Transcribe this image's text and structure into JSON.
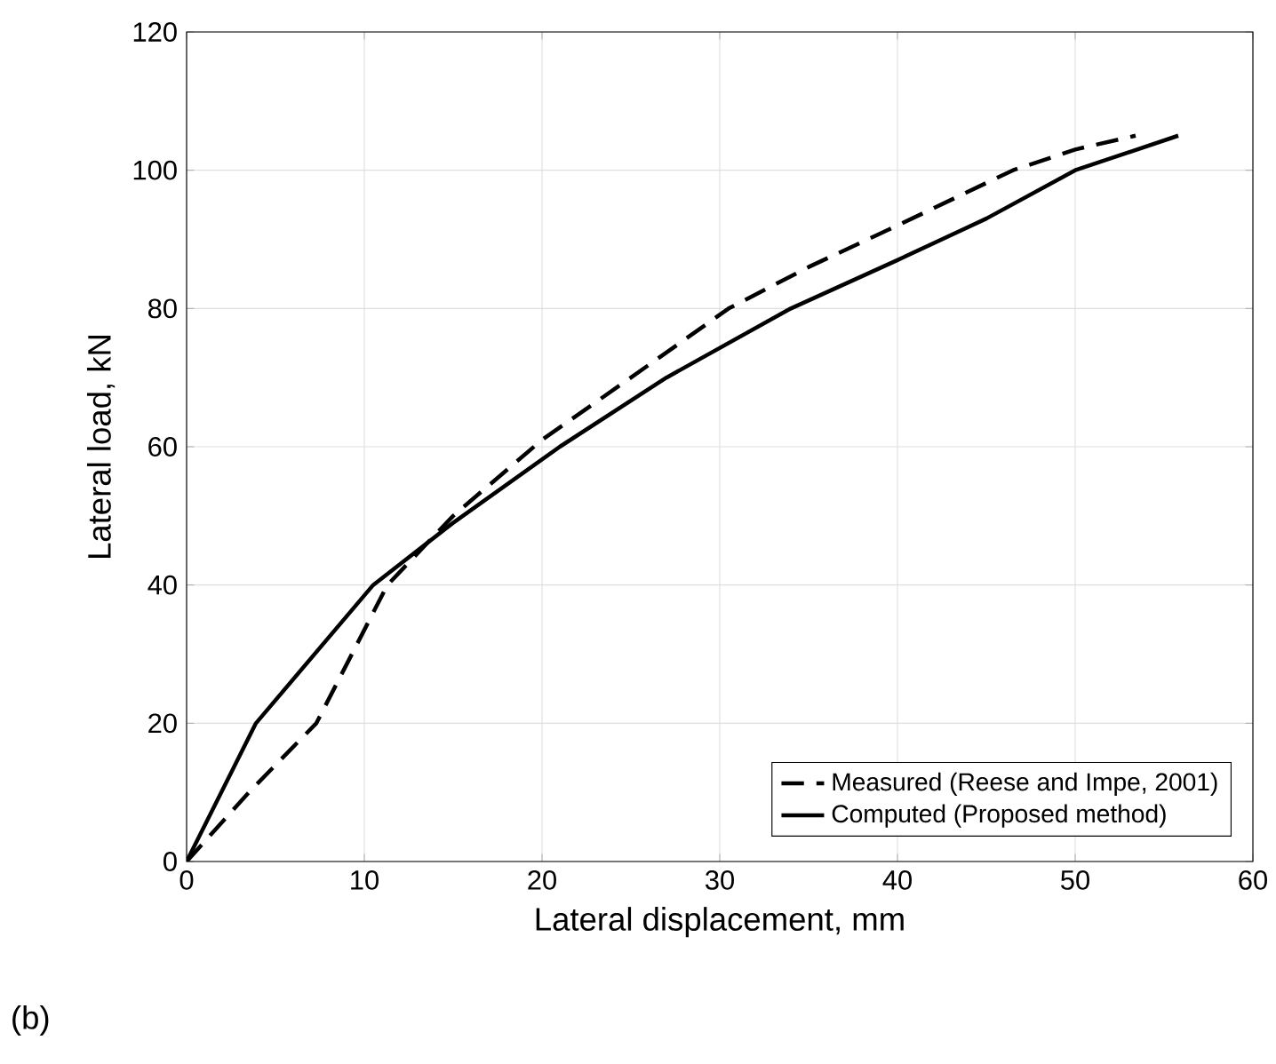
{
  "chart_data": {
    "type": "line",
    "xlabel": "Lateral displacement, mm",
    "ylabel": "Lateral load, kN",
    "xlim": [
      0,
      60
    ],
    "ylim": [
      0,
      120
    ],
    "xticks": [
      0,
      10,
      20,
      30,
      40,
      50,
      60
    ],
    "yticks": [
      0,
      20,
      40,
      60,
      80,
      100,
      120
    ],
    "grid": true,
    "legend": "bottom right",
    "annotations": [
      "(b)"
    ],
    "series": [
      {
        "name": "Measured (Reese and Impe, 2001)",
        "color": "#000000",
        "line_style": "dashed",
        "x": [
          0,
          3.5,
          7.3,
          11.3,
          15,
          20,
          25,
          30.5,
          35,
          40,
          46.5,
          50,
          53.4
        ],
        "values": [
          0,
          10,
          20,
          40,
          50,
          61,
          70,
          80,
          86,
          92,
          100,
          103,
          105
        ]
      },
      {
        "name": "Computed (Proposed method)",
        "color": "#000000",
        "line_style": "solid",
        "x": [
          0,
          3.9,
          10.5,
          15,
          21,
          27,
          34,
          40,
          45,
          50,
          55.8
        ],
        "values": [
          0,
          20,
          40,
          49,
          60,
          70,
          80,
          87,
          93,
          100,
          105
        ]
      }
    ]
  }
}
